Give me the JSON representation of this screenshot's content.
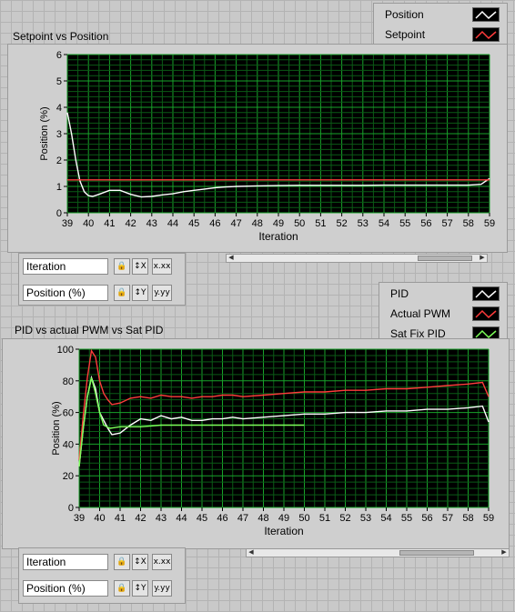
{
  "charts": [
    {
      "title": "Setpoint vs Position",
      "ylabel": "Position (%)",
      "xlabel": "Iteration",
      "legend": [
        {
          "label": "Position",
          "color": "#ffffff"
        },
        {
          "label": "Setpoint",
          "color": "#ff3b3b"
        }
      ],
      "x_ticks": [
        "39",
        "40",
        "41",
        "42",
        "43",
        "44",
        "45",
        "46",
        "47",
        "48",
        "49",
        "50",
        "51",
        "52",
        "53",
        "54",
        "55",
        "56",
        "57",
        "58",
        "59"
      ],
      "y_ticks": [
        "0",
        "1",
        "2",
        "3",
        "4",
        "5",
        "6"
      ],
      "controls": {
        "x_scale_label": "Iteration",
        "y_scale_label": "Position (%)"
      }
    },
    {
      "title": "PID  vs actual PWM vs Sat PID",
      "ylabel": "Position (%)",
      "xlabel": "Iteration",
      "legend": [
        {
          "label": "PID",
          "color": "#ffffff"
        },
        {
          "label": "Actual PWM",
          "color": "#ff3b3b"
        },
        {
          "label": "Sat Fix PID",
          "color": "#7dff5a"
        }
      ],
      "x_ticks": [
        "39",
        "40",
        "41",
        "42",
        "43",
        "44",
        "45",
        "46",
        "47",
        "48",
        "49",
        "50",
        "51",
        "52",
        "53",
        "54",
        "55",
        "56",
        "57",
        "58",
        "59"
      ],
      "y_ticks": [
        "0",
        "20",
        "40",
        "60",
        "80",
        "100"
      ],
      "controls": {
        "x_scale_label": "Iteration",
        "y_scale_label": "Position (%)"
      }
    }
  ],
  "icons": {
    "lock": "lock-icon",
    "x_autoscale": "x-autoscale-icon",
    "y_autoscale": "y-autoscale-icon",
    "x_format": "x-format-icon",
    "y_format": "y-format-icon"
  },
  "chart_data": [
    {
      "type": "line",
      "title": "Setpoint vs Position",
      "xlabel": "Iteration",
      "ylabel": "Position (%)",
      "xlim": [
        39,
        59
      ],
      "ylim": [
        0,
        6
      ],
      "grid": true,
      "legend_position": "top-right",
      "series": [
        {
          "name": "Position",
          "color": "#ffffff",
          "x": [
            39,
            39.2,
            39.4,
            39.6,
            39.8,
            40,
            40.2,
            40.5,
            41,
            41.5,
            42,
            42.5,
            43,
            43.5,
            44,
            44.5,
            45,
            45.5,
            46,
            46.5,
            47,
            48,
            49,
            50,
            51,
            52,
            53,
            54,
            55,
            56,
            57,
            58,
            58.6,
            59
          ],
          "y": [
            3.8,
            3.0,
            2.0,
            1.2,
            0.8,
            0.65,
            0.62,
            0.7,
            0.85,
            0.85,
            0.7,
            0.6,
            0.62,
            0.68,
            0.72,
            0.8,
            0.85,
            0.9,
            0.95,
            0.98,
            1.0,
            1.02,
            1.03,
            1.04,
            1.04,
            1.04,
            1.04,
            1.05,
            1.05,
            1.05,
            1.05,
            1.05,
            1.08,
            1.3
          ]
        },
        {
          "name": "Setpoint",
          "color": "#ff3b3b",
          "x": [
            39,
            59
          ],
          "y": [
            1.25,
            1.25
          ]
        }
      ]
    },
    {
      "type": "line",
      "title": "PID  vs actual PWM vs Sat PID",
      "xlabel": "Iteration",
      "ylabel": "Position (%)",
      "xlim": [
        39,
        59
      ],
      "ylim": [
        0,
        100
      ],
      "grid": true,
      "legend_position": "top-right",
      "series": [
        {
          "name": "PID",
          "color": "#ffffff",
          "x": [
            39,
            39.2,
            39.4,
            39.6,
            39.8,
            40,
            40.2,
            40.4,
            40.6,
            41,
            41.5,
            42,
            42.5,
            43,
            43.5,
            44,
            44.5,
            45,
            45.5,
            46,
            46.5,
            47,
            48,
            49,
            50,
            51,
            52,
            53,
            54,
            55,
            56,
            57,
            58,
            58.7,
            59
          ],
          "y": [
            26,
            50,
            70,
            82,
            75,
            60,
            55,
            50,
            46,
            47,
            52,
            56,
            55,
            58,
            56,
            57,
            55,
            55,
            56,
            56,
            57,
            56,
            57,
            58,
            59,
            59,
            60,
            60,
            61,
            61,
            62,
            62,
            63,
            64,
            54
          ]
        },
        {
          "name": "Actual PWM",
          "color": "#ff3b3b",
          "x": [
            39,
            39.2,
            39.4,
            39.6,
            39.8,
            40,
            40.2,
            40.4,
            40.6,
            41,
            41.5,
            42,
            42.5,
            43,
            43.5,
            44,
            44.5,
            45,
            45.5,
            46,
            46.5,
            47,
            48,
            49,
            50,
            51,
            52,
            53,
            54,
            55,
            56,
            57,
            58,
            58.7,
            59
          ],
          "y": [
            30,
            58,
            82,
            99,
            95,
            80,
            72,
            68,
            65,
            66,
            69,
            70,
            69,
            71,
            70,
            70,
            69,
            70,
            70,
            71,
            71,
            70,
            71,
            72,
            73,
            73,
            74,
            74,
            75,
            75,
            76,
            77,
            78,
            79,
            70
          ]
        },
        {
          "name": "Sat Fix PID",
          "color": "#7dff5a",
          "x": [
            39,
            39.2,
            39.4,
            39.6,
            39.8,
            40,
            40.2,
            40.5,
            41,
            42,
            43,
            44,
            45,
            46,
            47,
            48,
            49,
            50
          ],
          "y": [
            26,
            50,
            70,
            82,
            72,
            60,
            52,
            50,
            51,
            51,
            52,
            52,
            52,
            52,
            52,
            52,
            52,
            52
          ]
        }
      ]
    }
  ]
}
